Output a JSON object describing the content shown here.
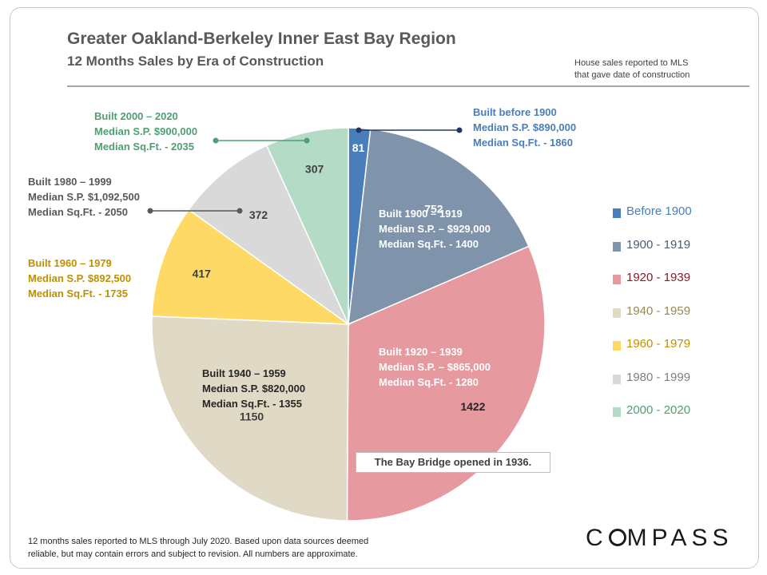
{
  "header": {
    "title": "Greater Oakland-Berkeley Inner East Bay Region",
    "subtitle": "12 Months  Sales by Era of Construction",
    "note_line1": "House sales reported to MLS",
    "note_line2": "that gave date of construction"
  },
  "chart_data": {
    "type": "pie",
    "title": "Greater Oakland-Berkeley Inner East Bay Region",
    "subtitle": "12 Months  Sales by Era of Construction",
    "slices": [
      {
        "label": "Before 1900",
        "value": 81,
        "color": "#4a7ebb",
        "text_color": "#4a7ebb"
      },
      {
        "label": "1900 - 1919",
        "value": 752,
        "color": "#7f93ab",
        "text_color": "#4a5d72"
      },
      {
        "label": "1920 - 1939",
        "value": 1422,
        "color": "#e6999e",
        "text_color": "#8b1a2b"
      },
      {
        "label": "1940 - 1959",
        "value": 1150,
        "color": "#dfd9c5",
        "text_color": "#948a54"
      },
      {
        "label": "1960 - 1979",
        "value": 417,
        "color": "#ffd966",
        "text_color": "#bf9000"
      },
      {
        "label": "1980 - 1999",
        "value": 372,
        "color": "#d9d9d9",
        "text_color": "#7f7f7f"
      },
      {
        "label": "2000 - 2020",
        "value": 307,
        "color": "#b4dbc6",
        "text_color": "#4ea072"
      }
    ],
    "legend_position": "right"
  },
  "annotations": [
    {
      "lines": [
        "Built before 1900",
        "Median S.P. $890,000",
        "Median Sq.Ft. - 1860"
      ],
      "color": "#4a7ebb"
    },
    {
      "lines": [
        "Built 1900 – 1919",
        "Median S.P. – $929,000",
        "Median Sq.Ft. - 1400"
      ],
      "color": "#ffffff"
    },
    {
      "lines": [
        "Built 1920 – 1939",
        "Median S.P. – $865,000",
        "Median Sq.Ft. - 1280"
      ],
      "color": "#ffffff"
    },
    {
      "lines": [
        "Built 1940 – 1959",
        "Median S.P. $820,000",
        "Median Sq.Ft. - 1355"
      ],
      "color": "#262626"
    },
    {
      "lines": [
        "Built 1960 – 1979",
        "Median S.P. $892,500",
        "Median Sq.Ft. - 1735"
      ],
      "color": "#bf9000"
    },
    {
      "lines": [
        "Built 1980 – 1999",
        "Median S.P. $1,092,500",
        "Median Sq.Ft. - 2050"
      ],
      "color": "#595959"
    },
    {
      "lines": [
        "Built 2000 – 2020",
        "Median S.P. $900,000",
        "Median Sq.Ft. - 2035"
      ],
      "color": "#4ea072"
    }
  ],
  "bridge_note": "The Bay Bridge opened in 1936.",
  "footer": {
    "line1": "12 months sales reported to MLS through July 2020. Based upon data sources deemed",
    "line2": "reliable, but may contain errors and subject to revision. All numbers are approximate."
  },
  "brand": {
    "left": "C",
    "right": "MPASS"
  }
}
